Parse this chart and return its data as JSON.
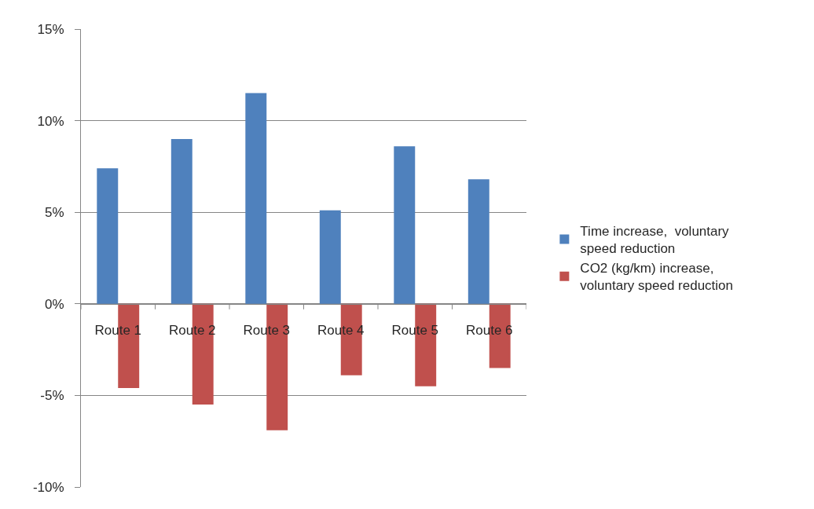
{
  "chart_data": {
    "type": "bar",
    "categories": [
      "Route 1",
      "Route 2",
      "Route 3",
      "Route 4",
      "Route 5",
      "Route 6"
    ],
    "series": [
      {
        "name": "Time increase,  voluntary speed reduction",
        "color": "#4f81bd",
        "values": [
          7.4,
          9.0,
          11.5,
          5.1,
          8.6,
          6.8
        ]
      },
      {
        "name": "CO2 (kg/km) increase, voluntary speed reduction",
        "color": "#c0504d",
        "values": [
          -4.6,
          -5.5,
          -6.9,
          -3.9,
          -4.5,
          -3.5
        ]
      }
    ],
    "ylim": [
      -10,
      15
    ],
    "yticks": [
      {
        "value": -10,
        "label": "-10%"
      },
      {
        "value": -5,
        "label": "-5%"
      },
      {
        "value": 0,
        "label": "0%"
      },
      {
        "value": 5,
        "label": "5%"
      },
      {
        "value": 10,
        "label": "10%"
      },
      {
        "value": 15,
        "label": "15%"
      }
    ],
    "grid": "y",
    "legend": "right"
  }
}
